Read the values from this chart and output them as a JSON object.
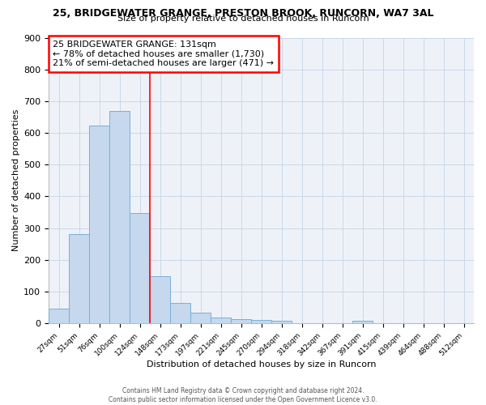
{
  "title": "25, BRIDGEWATER GRANGE, PRESTON BROOK, RUNCORN, WA7 3AL",
  "subtitle": "Size of property relative to detached houses in Runcorn",
  "xlabel": "Distribution of detached houses by size in Runcorn",
  "ylabel": "Number of detached properties",
  "bar_color": "#c5d8ee",
  "bar_edge_color": "#7aafd4",
  "grid_color": "#c8d8e8",
  "background_color": "#eef2f8",
  "bin_labels": [
    "27sqm",
    "51sqm",
    "76sqm",
    "100sqm",
    "124sqm",
    "148sqm",
    "173sqm",
    "197sqm",
    "221sqm",
    "245sqm",
    "270sqm",
    "294sqm",
    "318sqm",
    "342sqm",
    "367sqm",
    "391sqm",
    "415sqm",
    "439sqm",
    "464sqm",
    "488sqm",
    "512sqm"
  ],
  "bar_heights": [
    45,
    280,
    622,
    670,
    347,
    148,
    65,
    32,
    18,
    12,
    10,
    8,
    0,
    0,
    0,
    8,
    0,
    0,
    0,
    0,
    0
  ],
  "ylim": [
    0,
    900
  ],
  "yticks": [
    0,
    100,
    200,
    300,
    400,
    500,
    600,
    700,
    800,
    900
  ],
  "red_line_x": 4.5,
  "annotation_title": "25 BRIDGEWATER GRANGE: 131sqm",
  "annotation_line1": "← 78% of detached houses are smaller (1,730)",
  "annotation_line2": "21% of semi-detached houses are larger (471) →",
  "footnote1": "Contains HM Land Registry data © Crown copyright and database right 2024.",
  "footnote2": "Contains public sector information licensed under the Open Government Licence v3.0."
}
